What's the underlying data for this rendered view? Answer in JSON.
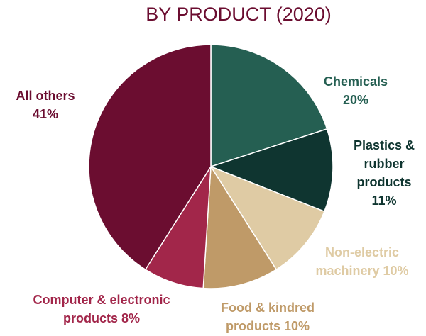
{
  "chart_data": {
    "type": "pie",
    "title": "BY PRODUCT (2020)",
    "slices": [
      {
        "name": "Chemicals",
        "value": 20,
        "color": "#255f52",
        "label_lines": [
          "Chemicals",
          "20%"
        ]
      },
      {
        "name": "Plastics & rubber products",
        "value": 11,
        "color": "#0f3530",
        "label_lines": [
          "Plastics &",
          "rubber",
          "products",
          "11%"
        ]
      },
      {
        "name": "Non-electric machinery",
        "value": 10,
        "color": "#dfcba4",
        "label_lines": [
          "Non-electric",
          "machinery 10%"
        ]
      },
      {
        "name": "Food & kindred products",
        "value": 10,
        "color": "#bf9a68",
        "label_lines": [
          "Food & kindred",
          "products 10%"
        ]
      },
      {
        "name": "Computer & electronic products",
        "value": 8,
        "color": "#a2264a",
        "label_lines": [
          "Computer & electronic",
          "products 8%"
        ]
      },
      {
        "name": "All others",
        "value": 41,
        "color": "#6b0d30",
        "label_lines": [
          "All others",
          "41%"
        ]
      }
    ],
    "start_direction": "top",
    "order": "clockwise"
  }
}
